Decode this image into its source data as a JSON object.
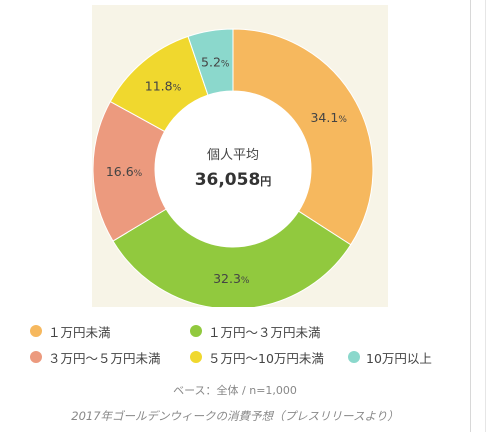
{
  "chart_data": {
    "type": "pie",
    "donut": true,
    "center_label": "個人平均",
    "center_value": "36,058",
    "center_unit": "円",
    "slices": [
      {
        "label": "１万円未満",
        "value": 34.1,
        "text": "34.1",
        "color": "#f6b85e"
      },
      {
        "label": "１万円〜３万円未満",
        "value": 32.3,
        "text": "32.3",
        "color": "#91c93e"
      },
      {
        "label": "３万円〜５万円未満",
        "value": 16.6,
        "text": "16.6",
        "color": "#ec9a7e"
      },
      {
        "label": "５万円〜10万円未満",
        "value": 11.8,
        "text": "11.8",
        "color": "#f0d82e"
      },
      {
        "label": "10万円以上",
        "value": 5.2,
        "text": "5.2",
        "color": "#8bd8cc"
      }
    ],
    "percent_sign": "%",
    "legend_placement": "bottom"
  },
  "base_note": "ベース：全体 / n=1,000",
  "caption": "2017年ゴールデンウィークの消費予想（プレスリリースより）"
}
